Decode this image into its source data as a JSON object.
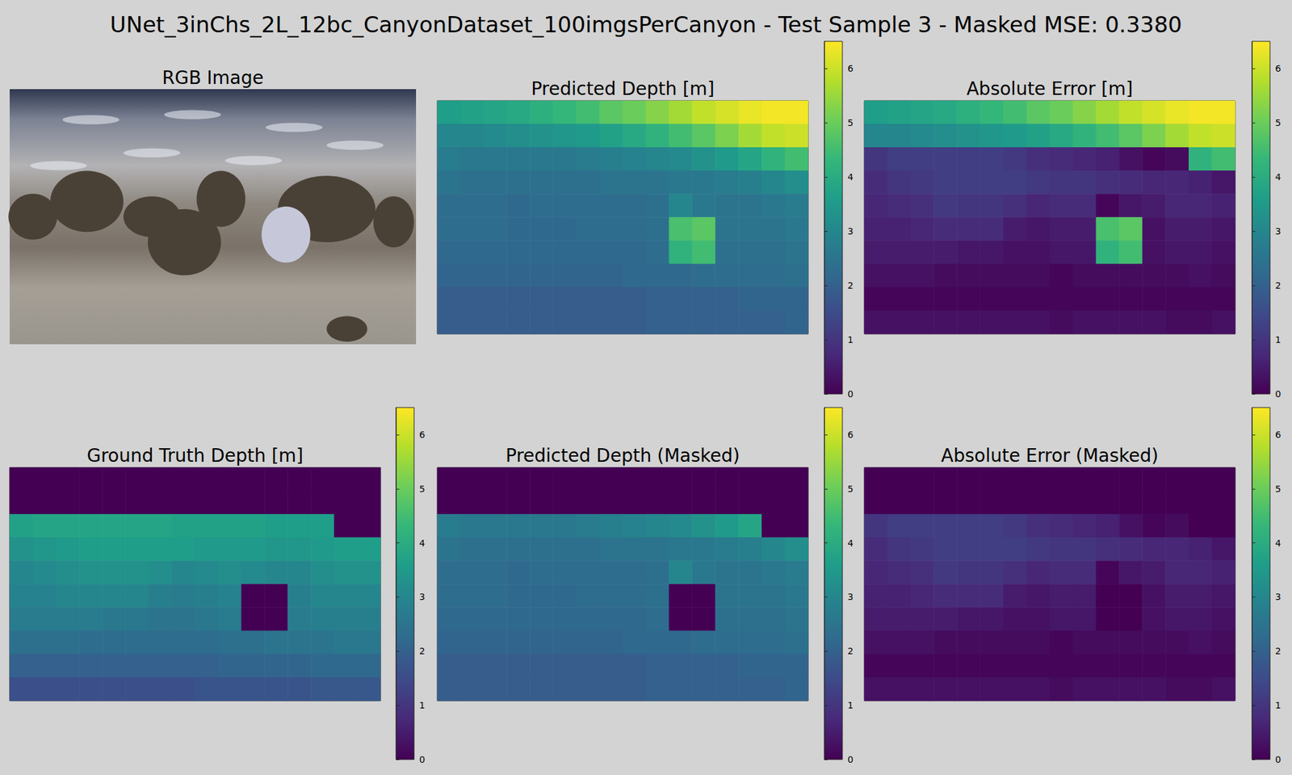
{
  "title": "UNet_3inChs_2L_12bc_CanyonDataset_100imgsPerCanyon - Test Sample 3 - Masked MSE: 0.3380",
  "chart_data": [
    {
      "type": "image",
      "title": "RGB Image"
    },
    {
      "type": "heatmap",
      "title": "Predicted Depth [m]",
      "tick_labels": false,
      "color_range": [
        0,
        6.5
      ],
      "color_ticks": [
        0,
        1,
        2,
        3,
        4,
        5,
        6
      ],
      "cells": [
        [
          3.6,
          3.7,
          3.8,
          3.9,
          4.1,
          4.3,
          4.5,
          4.8,
          5.0,
          5.3,
          5.6,
          5.9,
          6.1,
          6.3,
          6.4,
          6.4
        ],
        [
          3.0,
          3.0,
          3.1,
          3.2,
          3.3,
          3.4,
          3.5,
          3.7,
          3.9,
          4.2,
          4.5,
          4.8,
          5.2,
          5.6,
          5.9,
          6.0
        ],
        [
          2.7,
          2.6,
          2.6,
          2.6,
          2.6,
          2.6,
          2.7,
          2.8,
          2.9,
          3.0,
          3.1,
          3.3,
          3.5,
          3.8,
          4.2,
          4.5
        ],
        [
          2.5,
          2.4,
          2.4,
          2.4,
          2.4,
          2.4,
          2.4,
          2.5,
          2.5,
          2.5,
          2.6,
          2.6,
          2.7,
          2.8,
          3.0,
          3.2
        ],
        [
          2.3,
          2.3,
          2.3,
          2.2,
          2.3,
          2.3,
          2.3,
          2.3,
          2.3,
          2.4,
          3.0,
          2.6,
          2.5,
          2.5,
          2.6,
          2.7
        ],
        [
          2.3,
          2.3,
          2.3,
          2.2,
          2.2,
          2.2,
          2.3,
          2.3,
          2.3,
          2.4,
          4.6,
          4.8,
          2.5,
          2.5,
          2.5,
          2.6
        ],
        [
          2.2,
          2.2,
          2.2,
          2.2,
          2.2,
          2.2,
          2.2,
          2.2,
          2.2,
          2.3,
          4.2,
          4.5,
          2.4,
          2.4,
          2.4,
          2.5
        ],
        [
          2.1,
          2.1,
          2.1,
          2.1,
          2.1,
          2.1,
          2.1,
          2.1,
          2.2,
          2.2,
          2.2,
          2.3,
          2.3,
          2.3,
          2.3,
          2.4
        ],
        [
          1.9,
          1.9,
          1.9,
          1.9,
          1.9,
          1.9,
          1.9,
          1.9,
          1.9,
          2.0,
          2.0,
          2.0,
          2.0,
          2.1,
          2.1,
          2.1
        ],
        [
          1.9,
          1.9,
          1.9,
          1.9,
          1.9,
          1.9,
          1.9,
          1.9,
          1.9,
          2.0,
          2.0,
          2.0,
          2.0,
          2.0,
          2.0,
          2.1
        ]
      ]
    },
    {
      "type": "heatmap",
      "title": "Absolute Error [m]",
      "tick_labels": false,
      "color_range": [
        0,
        6.5
      ],
      "color_ticks": [
        0,
        1,
        2,
        3,
        4,
        5,
        6
      ],
      "cells": [
        [
          3.6,
          3.7,
          3.8,
          3.9,
          4.1,
          4.3,
          4.5,
          4.8,
          5.0,
          5.3,
          5.6,
          5.9,
          6.1,
          6.3,
          6.4,
          6.4
        ],
        [
          3.0,
          3.0,
          3.1,
          3.2,
          3.3,
          3.4,
          3.5,
          3.7,
          3.9,
          4.2,
          4.5,
          4.8,
          5.2,
          5.6,
          5.9,
          6.0
        ],
        [
          1.0,
          1.2,
          1.2,
          1.2,
          1.2,
          1.2,
          1.1,
          0.9,
          0.8,
          0.7,
          0.6,
          0.3,
          0.1,
          0.2,
          4.2,
          4.5
        ],
        [
          0.8,
          1.0,
          1.1,
          1.2,
          1.2,
          1.2,
          1.2,
          1.1,
          1.0,
          1.0,
          0.9,
          0.8,
          0.7,
          0.7,
          0.6,
          0.4
        ],
        [
          0.7,
          0.8,
          0.9,
          1.1,
          1.0,
          1.0,
          0.9,
          0.7,
          0.8,
          0.8,
          0.1,
          0.4,
          0.5,
          0.7,
          0.7,
          0.6
        ],
        [
          0.6,
          0.6,
          0.7,
          0.8,
          0.8,
          0.8,
          0.5,
          0.4,
          0.5,
          0.5,
          4.6,
          4.8,
          0.3,
          0.5,
          0.5,
          0.4
        ],
        [
          0.5,
          0.5,
          0.5,
          0.5,
          0.4,
          0.4,
          0.3,
          0.3,
          0.4,
          0.4,
          4.2,
          4.5,
          0.3,
          0.4,
          0.4,
          0.3
        ],
        [
          0.3,
          0.3,
          0.3,
          0.2,
          0.2,
          0.2,
          0.2,
          0.2,
          0.1,
          0.2,
          0.2,
          0.2,
          0.2,
          0.2,
          0.3,
          0.2
        ],
        [
          0.1,
          0.1,
          0.1,
          0.1,
          0.1,
          0.1,
          0.1,
          0.1,
          0.1,
          0.1,
          0.1,
          0.1,
          0.1,
          0.1,
          0.1,
          0.1
        ],
        [
          0.3,
          0.3,
          0.3,
          0.3,
          0.3,
          0.3,
          0.3,
          0.3,
          0.2,
          0.3,
          0.3,
          0.3,
          0.3,
          0.2,
          0.2,
          0.3
        ]
      ]
    },
    {
      "type": "heatmap",
      "title": "Ground Truth Depth [m]",
      "tick_labels": false,
      "color_range": [
        0,
        6.5
      ],
      "color_ticks": [
        0,
        1,
        2,
        3,
        4,
        5,
        6
      ],
      "cells": [
        [
          0,
          0,
          0,
          0,
          0,
          0,
          0,
          0,
          0,
          0,
          0,
          0,
          0,
          0,
          0,
          0
        ],
        [
          0,
          0,
          0,
          0,
          0,
          0,
          0,
          0,
          0,
          0,
          0,
          0,
          0,
          0,
          0,
          0
        ],
        [
          3.7,
          3.8,
          3.8,
          3.8,
          3.8,
          3.8,
          3.8,
          3.7,
          3.7,
          3.7,
          3.7,
          3.6,
          3.6,
          3.6,
          0,
          0
        ],
        [
          3.3,
          3.4,
          3.5,
          3.6,
          3.6,
          3.6,
          3.6,
          3.6,
          3.5,
          3.5,
          3.5,
          3.4,
          3.4,
          3.5,
          3.6,
          3.6
        ],
        [
          3.0,
          3.1,
          3.2,
          3.3,
          3.3,
          3.3,
          3.2,
          3.0,
          3.1,
          3.2,
          3.1,
          3.0,
          3.0,
          3.2,
          3.3,
          3.3
        ],
        [
          2.9,
          2.9,
          3.0,
          3.0,
          3.0,
          3.0,
          2.8,
          2.7,
          2.8,
          2.9,
          0,
          0,
          2.8,
          3.0,
          3.0,
          3.0
        ],
        [
          2.7,
          2.7,
          2.7,
          2.7,
          2.6,
          2.6,
          2.5,
          2.5,
          2.6,
          2.7,
          0,
          0,
          2.7,
          2.8,
          2.8,
          2.8
        ],
        [
          2.4,
          2.4,
          2.4,
          2.3,
          2.3,
          2.3,
          2.3,
          2.3,
          2.3,
          2.4,
          2.4,
          2.5,
          2.5,
          2.5,
          2.6,
          2.6
        ],
        [
          2.0,
          2.0,
          2.0,
          2.0,
          2.0,
          2.0,
          2.0,
          2.0,
          2.0,
          2.1,
          2.1,
          2.1,
          2.1,
          2.2,
          2.2,
          2.2
        ],
        [
          1.6,
          1.6,
          1.6,
          1.6,
          1.6,
          1.6,
          1.6,
          1.6,
          1.7,
          1.7,
          1.7,
          1.7,
          1.7,
          1.8,
          1.8,
          1.8
        ]
      ]
    },
    {
      "type": "heatmap",
      "title": "Predicted Depth (Masked)",
      "tick_labels": false,
      "color_range": [
        0,
        6.5
      ],
      "color_ticks": [
        0,
        1,
        2,
        3,
        4,
        5,
        6
      ],
      "cells": [
        [
          0,
          0,
          0,
          0,
          0,
          0,
          0,
          0,
          0,
          0,
          0,
          0,
          0,
          0,
          0,
          0
        ],
        [
          0,
          0,
          0,
          0,
          0,
          0,
          0,
          0,
          0,
          0,
          0,
          0,
          0,
          0,
          0,
          0
        ],
        [
          2.7,
          2.6,
          2.6,
          2.6,
          2.6,
          2.6,
          2.7,
          2.8,
          2.9,
          3.0,
          3.1,
          3.3,
          3.5,
          3.8,
          0,
          0
        ],
        [
          2.5,
          2.4,
          2.4,
          2.4,
          2.4,
          2.4,
          2.4,
          2.5,
          2.5,
          2.5,
          2.6,
          2.6,
          2.7,
          2.8,
          3.0,
          3.2
        ],
        [
          2.3,
          2.3,
          2.3,
          2.2,
          2.3,
          2.3,
          2.3,
          2.3,
          2.3,
          2.4,
          3.0,
          2.6,
          2.5,
          2.5,
          2.6,
          2.7
        ],
        [
          2.3,
          2.3,
          2.3,
          2.2,
          2.2,
          2.2,
          2.3,
          2.3,
          2.3,
          2.4,
          0,
          0,
          2.5,
          2.5,
          2.5,
          2.6
        ],
        [
          2.2,
          2.2,
          2.2,
          2.2,
          2.2,
          2.2,
          2.2,
          2.2,
          2.2,
          2.3,
          0,
          0,
          2.4,
          2.4,
          2.4,
          2.5
        ],
        [
          2.1,
          2.1,
          2.1,
          2.1,
          2.1,
          2.1,
          2.1,
          2.1,
          2.2,
          2.2,
          2.2,
          2.3,
          2.3,
          2.3,
          2.3,
          2.4
        ],
        [
          1.9,
          1.9,
          1.9,
          1.9,
          1.9,
          1.9,
          1.9,
          1.9,
          1.9,
          2.0,
          2.0,
          2.0,
          2.0,
          2.1,
          2.1,
          2.1
        ],
        [
          1.9,
          1.9,
          1.9,
          1.9,
          1.9,
          1.9,
          1.9,
          1.9,
          1.9,
          2.0,
          2.0,
          2.0,
          2.0,
          2.0,
          2.0,
          2.1
        ]
      ]
    },
    {
      "type": "heatmap",
      "title": "Absolute Error (Masked)",
      "tick_labels": false,
      "color_range": [
        0,
        6.5
      ],
      "color_ticks": [
        0,
        1,
        2,
        3,
        4,
        5,
        6
      ],
      "cells": [
        [
          0,
          0,
          0,
          0,
          0,
          0,
          0,
          0,
          0,
          0,
          0,
          0,
          0,
          0,
          0,
          0
        ],
        [
          0,
          0,
          0,
          0,
          0,
          0,
          0,
          0,
          0,
          0,
          0,
          0,
          0,
          0,
          0,
          0
        ],
        [
          1.0,
          1.2,
          1.2,
          1.2,
          1.2,
          1.2,
          1.1,
          0.9,
          0.8,
          0.7,
          0.6,
          0.3,
          0.1,
          0.2,
          0,
          0
        ],
        [
          0.8,
          1.0,
          1.1,
          1.2,
          1.2,
          1.2,
          1.2,
          1.1,
          1.0,
          1.0,
          0.9,
          0.8,
          0.7,
          0.7,
          0.6,
          0.4
        ],
        [
          0.7,
          0.8,
          0.9,
          1.1,
          1.0,
          1.0,
          0.9,
          0.7,
          0.8,
          0.8,
          0.1,
          0.4,
          0.5,
          0.7,
          0.7,
          0.6
        ],
        [
          0.6,
          0.6,
          0.7,
          0.8,
          0.8,
          0.8,
          0.5,
          0.4,
          0.5,
          0.5,
          0,
          0,
          0.3,
          0.5,
          0.5,
          0.4
        ],
        [
          0.5,
          0.5,
          0.5,
          0.5,
          0.4,
          0.4,
          0.3,
          0.3,
          0.4,
          0.4,
          0,
          0,
          0.3,
          0.4,
          0.4,
          0.3
        ],
        [
          0.3,
          0.3,
          0.3,
          0.2,
          0.2,
          0.2,
          0.2,
          0.2,
          0.1,
          0.2,
          0.2,
          0.2,
          0.2,
          0.2,
          0.3,
          0.2
        ],
        [
          0.1,
          0.1,
          0.1,
          0.1,
          0.1,
          0.1,
          0.1,
          0.1,
          0.1,
          0.1,
          0.1,
          0.1,
          0.1,
          0.1,
          0.1,
          0.1
        ],
        [
          0.3,
          0.3,
          0.3,
          0.3,
          0.3,
          0.3,
          0.3,
          0.3,
          0.2,
          0.3,
          0.3,
          0.3,
          0.3,
          0.2,
          0.2,
          0.3
        ]
      ]
    }
  ]
}
